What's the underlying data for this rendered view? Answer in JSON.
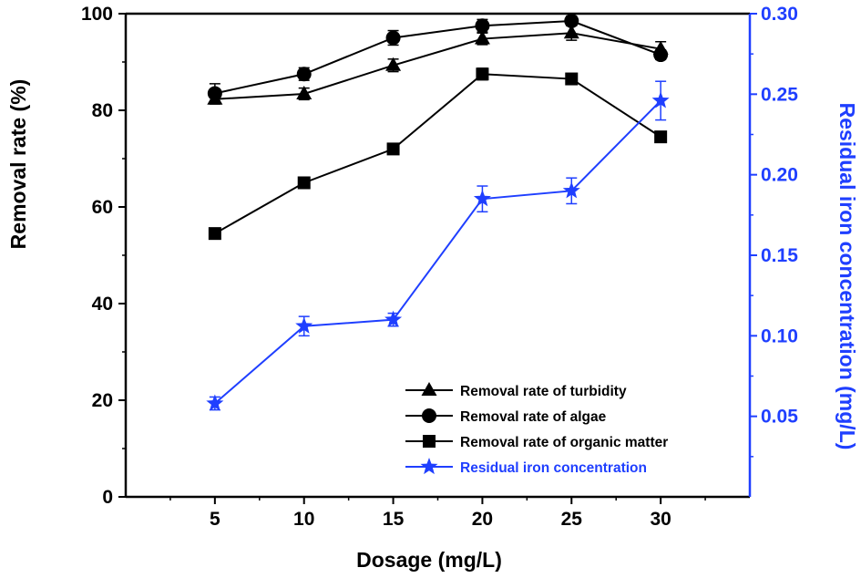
{
  "chart_data": {
    "type": "line",
    "xlabel": "Dosage (mg/L)",
    "ylabel_left": "Removal rate (%)",
    "ylabel_right": "Residual iron concentration (mg/L)",
    "x": [
      5,
      10,
      15,
      20,
      25,
      30
    ],
    "xlim": [
      0,
      35
    ],
    "ylim_left": [
      0,
      100
    ],
    "ylim_right": [
      0,
      0.3
    ],
    "x_ticks": [
      "5",
      "10",
      "15",
      "20",
      "25",
      "30"
    ],
    "y_left_ticks": [
      "0",
      "20",
      "40",
      "60",
      "80",
      "100"
    ],
    "y_right_ticks": [
      "0.05",
      "0.10",
      "0.15",
      "0.20",
      "0.25",
      "0.30"
    ],
    "right_axis_color": "#1f3fff",
    "series": [
      {
        "name": "Removal rate of turbidity",
        "marker": "triangle",
        "axis": "left",
        "color": "#000000",
        "values": [
          82.3,
          83.4,
          89.3,
          94.8,
          96.0,
          92.7
        ],
        "errors": [
          1.0,
          1.2,
          1.3,
          1.2,
          1.5,
          1.5
        ]
      },
      {
        "name": "Removal rate of algae",
        "marker": "circle",
        "axis": "left",
        "color": "#000000",
        "values": [
          83.5,
          87.5,
          95.0,
          97.5,
          98.5,
          91.5
        ],
        "errors": [
          2.0,
          1.3,
          1.5,
          1.3,
          1.0,
          1.0
        ]
      },
      {
        "name": "Removal rate of organic matter",
        "marker": "square",
        "axis": "left",
        "color": "#000000",
        "values": [
          54.5,
          65.0,
          72.0,
          87.5,
          86.5,
          74.5
        ],
        "errors": [
          0.8,
          0.5,
          0.5,
          1.2,
          0.5,
          0.5
        ]
      },
      {
        "name": "Residual iron concentration",
        "marker": "star",
        "axis": "right",
        "color": "#1f3fff",
        "values": [
          0.058,
          0.106,
          0.11,
          0.185,
          0.19,
          0.246
        ],
        "errors": [
          0.004,
          0.006,
          0.004,
          0.008,
          0.008,
          0.012
        ]
      }
    ],
    "legend": "bottom-right",
    "grid": false
  }
}
